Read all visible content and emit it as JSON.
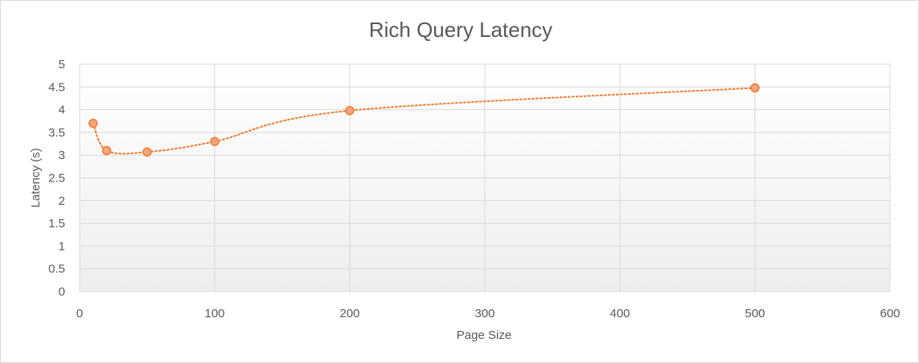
{
  "chart_data": {
    "type": "scatter",
    "title": "Rich Query Latency",
    "xlabel": "Page Size",
    "ylabel": "Latency (s)",
    "xlim": [
      0,
      600
    ],
    "ylim": [
      0,
      5
    ],
    "x_ticks": [
      0,
      100,
      200,
      300,
      400,
      500,
      600
    ],
    "y_ticks": [
      0,
      0.5,
      1,
      1.5,
      2,
      2.5,
      3,
      3.5,
      4,
      4.5,
      5
    ],
    "grid": true,
    "legend": "none",
    "series": [
      {
        "color": "#ed7d31",
        "marker_fill": "#f4a582",
        "line_style": "dotted smooth",
        "x": [
          10,
          20,
          50,
          100,
          200,
          500
        ],
        "y": [
          3.7,
          3.1,
          3.07,
          3.3,
          3.98,
          4.48
        ]
      }
    ]
  }
}
